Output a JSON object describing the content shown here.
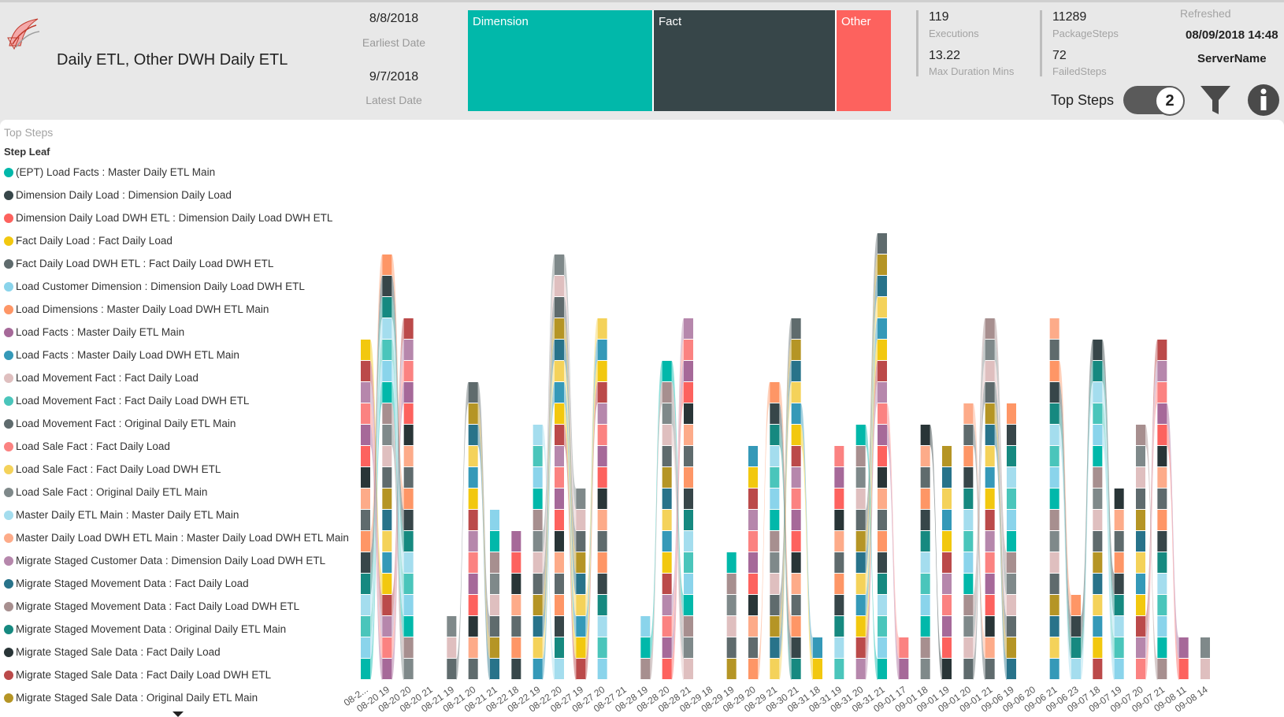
{
  "header": {
    "title": "Daily ETL, Other DWH Daily ETL",
    "earliest_date": "8/8/2018",
    "earliest_caption": "Earliest Date",
    "latest_date": "9/7/2018",
    "latest_caption": "Latest Date",
    "treemap": [
      {
        "label": "Dimension",
        "color": "#01b8aa"
      },
      {
        "label": "Fact",
        "color": "#374649"
      },
      {
        "label": "Other",
        "color": "#fd625e"
      }
    ],
    "kpis": {
      "executions_value": "119",
      "executions_caption": "Executions",
      "package_steps_value": "11289",
      "package_steps_caption": "PackageSteps",
      "max_duration_value": "13.22",
      "max_duration_caption": "Max Duration Mins",
      "failed_steps_value": "72",
      "failed_steps_caption": "FailedSteps"
    },
    "refreshed_caption": "Refreshed",
    "refreshed_value": "08/09/2018 14:48",
    "server_name": "ServerName",
    "top_steps_label": "Top Steps",
    "top_steps_value": "2"
  },
  "panel": {
    "title": "Top Steps",
    "legend_title": "Step Leaf"
  },
  "chart_data": {
    "type": "area",
    "subtype": "ribbon",
    "x": [
      "08-2...",
      "08-20 19",
      "08-20 20",
      "08-20 21",
      "08-21 19",
      "08-21 20",
      "08-21 21",
      "08-22 18",
      "08-22 19",
      "08-22 20",
      "08-27 19",
      "08-27 20",
      "08-27 21",
      "08-28 19",
      "08-28 20",
      "08-28 21",
      "08-29 18",
      "08-29 19",
      "08-29 20",
      "08-29 21",
      "08-30 21",
      "08-31 18",
      "08-31 19",
      "08-31 20",
      "08-31 21",
      "09-01 17",
      "09-01 18",
      "09-01 19",
      "09-01 20",
      "09-01 21",
      "09-06 19",
      "09-06 20",
      "09-06 21",
      "09-06 23",
      "09-07 18",
      "09-07 19",
      "09-07 20",
      "09-07 21",
      "09-08 11",
      "09-08 14"
    ],
    "totals": [
      16,
      20,
      17,
      0,
      3,
      14,
      8,
      7,
      12,
      20,
      9,
      17,
      0,
      3,
      15,
      17,
      0,
      6,
      11,
      14,
      17,
      2,
      11,
      12,
      21,
      2,
      12,
      11,
      13,
      17,
      13,
      0,
      17,
      4,
      16,
      9,
      12,
      16,
      2,
      2
    ],
    "series": [
      {
        "name": "(EPT) Load Facts : Master Daily ETL Main",
        "color": "#01b8aa"
      },
      {
        "name": "Dimension Daily Load : Dimension Daily Load",
        "color": "#374649"
      },
      {
        "name": "Dimension Daily Load DWH ETL : Dimension Daily Load DWH ETL",
        "color": "#fd625e"
      },
      {
        "name": "Fact Daily Load : Fact Daily Load",
        "color": "#f2c80f"
      },
      {
        "name": "Fact Daily Load DWH ETL : Fact Daily Load DWH ETL",
        "color": "#5f6b6d"
      },
      {
        "name": "Load Customer Dimension : Dimension Daily Load DWH ETL",
        "color": "#8ad4eb"
      },
      {
        "name": "Load Dimensions : Master Daily Load DWH ETL Main",
        "color": "#fe9666"
      },
      {
        "name": "Load Facts : Master Daily ETL Main",
        "color": "#a66999"
      },
      {
        "name": "Load Facts : Master Daily Load DWH ETL Main",
        "color": "#3599b8"
      },
      {
        "name": "Load Movement Fact : Fact Daily Load",
        "color": "#dfbfbf"
      },
      {
        "name": "Load Movement Fact : Fact Daily Load DWH ETL",
        "color": "#4ac5bb"
      },
      {
        "name": "Load Movement Fact : Original Daily ETL Main",
        "color": "#5f6b6d"
      },
      {
        "name": "Load Sale Fact : Fact Daily Load",
        "color": "#fb8281"
      },
      {
        "name": "Load Sale Fact : Fact Daily Load DWH ETL",
        "color": "#f4d25a"
      },
      {
        "name": "Load Sale Fact : Original Daily ETL Main",
        "color": "#7f898a"
      },
      {
        "name": "Master Daily ETL Main : Master Daily ETL Main",
        "color": "#a4ddee"
      },
      {
        "name": "Master Daily Load DWH ETL Main : Master Daily Load DWH ETL Main",
        "color": "#fdab89"
      },
      {
        "name": "Migrate Staged Customer Data : Dimension Daily Load DWH ETL",
        "color": "#b687ac"
      },
      {
        "name": "Migrate Staged Movement Data : Fact Daily Load",
        "color": "#28738a"
      },
      {
        "name": "Migrate Staged Movement Data : Fact Daily Load DWH ETL",
        "color": "#a78f8f"
      },
      {
        "name": "Migrate Staged Movement Data : Original Daily ETL Main",
        "color": "#168980"
      },
      {
        "name": "Migrate Staged Sale Data : Fact Daily Load",
        "color": "#293537"
      },
      {
        "name": "Migrate Staged Sale Data : Fact Daily Load DWH ETL",
        "color": "#bb4a4a"
      },
      {
        "name": "Migrate Staged Sale Data : Original Daily ETL Main",
        "color": "#b59525"
      }
    ],
    "legend_position": "left"
  }
}
